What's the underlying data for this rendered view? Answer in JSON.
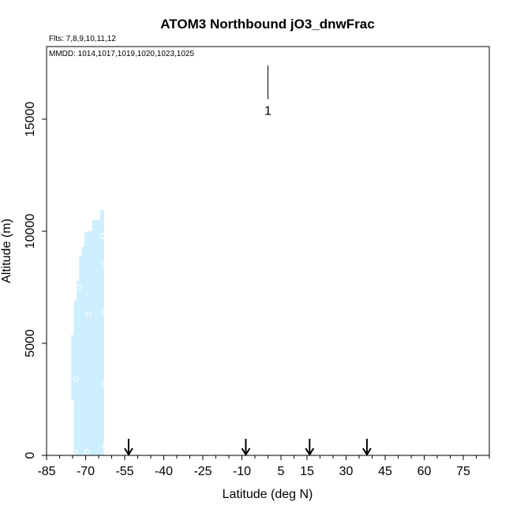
{
  "chart_data": {
    "type": "scatter",
    "title": "ATOM3 Northbound jO3_dnwFrac",
    "notes": {
      "flights": "Flts: 7,8,9,10,11,12",
      "dates": "MMDD: 1014,1017,1019,1020,1023,1025"
    },
    "xlabel": "Latitude (deg N)",
    "ylabel": "Altitude (m)",
    "xlim": [
      -85,
      85
    ],
    "ylim": [
      0,
      18000
    ],
    "x_ticks": [
      -85,
      -70,
      -55,
      -40,
      -25,
      -10,
      5,
      15,
      30,
      45,
      60,
      75
    ],
    "x_tick_labels": [
      "-85",
      "-70",
      "-55",
      "-40",
      "-25",
      "-10",
      "5",
      "15",
      "30",
      "45",
      "60",
      "75"
    ],
    "x_minor_step": 5,
    "y_ticks": [
      0,
      5000,
      10000,
      15000
    ],
    "y_tick_labels": [
      "0",
      "5000",
      "10000",
      "15000"
    ],
    "grid": false,
    "color_bar": {
      "label": "1",
      "color": "#000000",
      "x": 0,
      "y_range": [
        15900,
        17400
      ]
    },
    "data_color": "#cceeff",
    "series": [
      {
        "type": "profile-columns",
        "columns": [
          {
            "x": [
              -75.5,
              -74.5
            ],
            "alt": [
              2500,
              5400
            ]
          },
          {
            "x": [
              -74.5,
              -73.5
            ],
            "alt": [
              0,
              6900
            ]
          },
          {
            "x": [
              -73.5,
              -72.5
            ],
            "alt": [
              0,
              7800
            ]
          },
          {
            "x": [
              -72.5,
              -71.5
            ],
            "alt": [
              0,
              8900
            ]
          },
          {
            "x": [
              -71.5,
              -70.5
            ],
            "alt": [
              0,
              9300
            ]
          },
          {
            "x": [
              -70.5,
              -69.5
            ],
            "alt": [
              0,
              9950
            ]
          },
          {
            "x": [
              -69.5,
              -67.5
            ],
            "alt": [
              0,
              10000
            ]
          },
          {
            "x": [
              -67.5,
              -64.5
            ],
            "alt": [
              0,
              10500
            ]
          },
          {
            "x": [
              -64.5,
              -63.0
            ],
            "alt": [
              0,
              10950
            ]
          }
        ],
        "points": [
          {
            "x": -75.5,
            "y": 5400
          },
          {
            "x": -73.8,
            "y": 3400
          },
          {
            "x": -74.2,
            "y": 150
          },
          {
            "x": -69.4,
            "y": 150
          },
          {
            "x": -72.5,
            "y": 7500
          },
          {
            "x": -68.8,
            "y": 6300
          },
          {
            "x": -62.8,
            "y": 6400
          },
          {
            "x": -63.0,
            "y": 8600
          },
          {
            "x": -62.8,
            "y": 3200
          },
          {
            "x": -62.6,
            "y": 450
          },
          {
            "x": -63.5,
            "y": 9800
          }
        ]
      }
    ],
    "arrows": [
      {
        "x": -53.5
      },
      {
        "x": -8.5
      },
      {
        "x": 16.0
      },
      {
        "x": 38.0
      }
    ]
  }
}
